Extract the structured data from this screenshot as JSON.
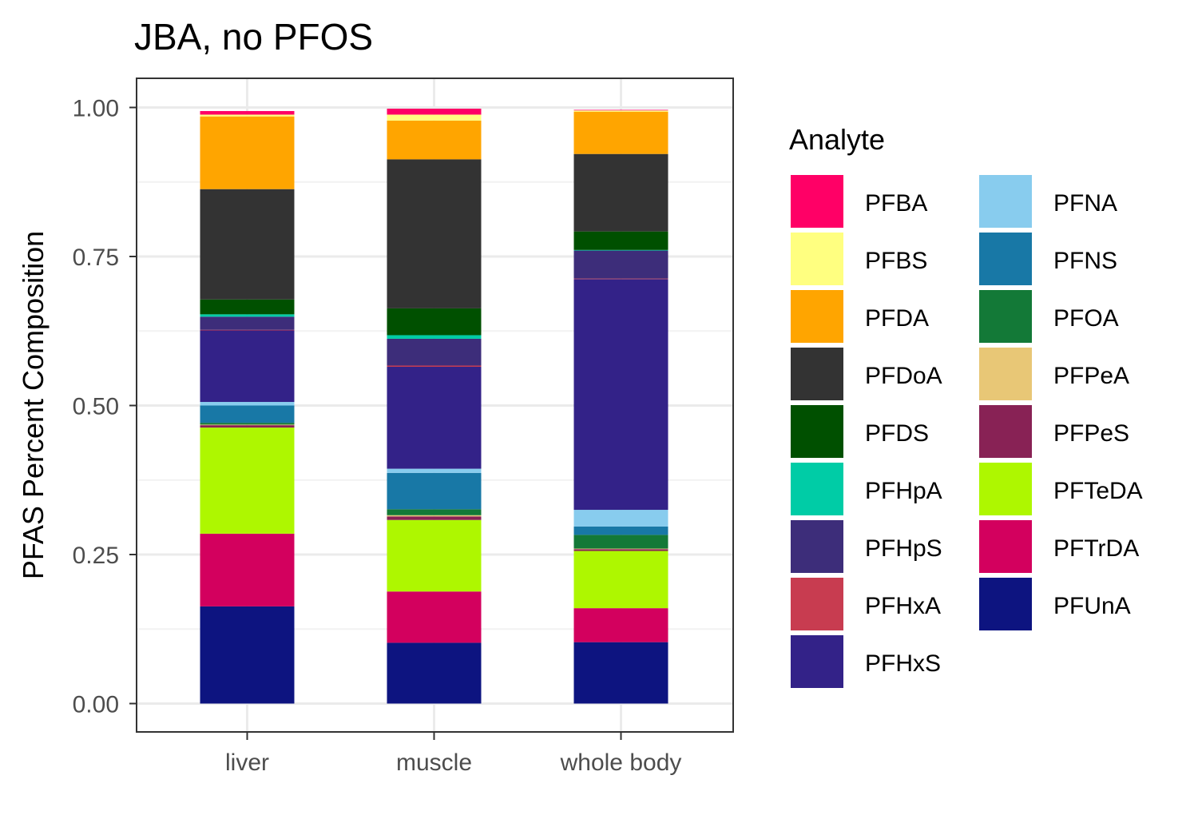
{
  "chart_data": {
    "type": "bar",
    "stacked": true,
    "title": "JBA, no PFOS",
    "xlabel": "",
    "ylabel": "PFAS Percent Composition",
    "categories": [
      "liver",
      "muscle",
      "whole body"
    ],
    "ylim": [
      0,
      1
    ],
    "yticks": [
      "0.00",
      "0.25",
      "0.50",
      "0.75",
      "1.00"
    ],
    "ytick_values": [
      0,
      0.25,
      0.5,
      0.75,
      1
    ],
    "grid": true,
    "legend_title": "Analyte",
    "legend_position": "right",
    "series": [
      {
        "name": "PFBA",
        "color": "#FF0066",
        "values": [
          0.006,
          0.01,
          0.001
        ]
      },
      {
        "name": "PFBS",
        "color": "#FFFF80",
        "values": [
          0.003,
          0.01,
          0.002
        ]
      },
      {
        "name": "PFDA",
        "color": "#FFA500",
        "values": [
          0.122,
          0.065,
          0.071
        ]
      },
      {
        "name": "PFDoA",
        "color": "#333333",
        "values": [
          0.185,
          0.25,
          0.13
        ]
      },
      {
        "name": "PFDS",
        "color": "#005000",
        "values": [
          0.025,
          0.045,
          0.031
        ]
      },
      {
        "name": "PFHpA",
        "color": "#00CCA6",
        "values": [
          0.004,
          0.006,
          0.001
        ]
      },
      {
        "name": "PFHpS",
        "color": "#3D2D7A",
        "values": [
          0.022,
          0.045,
          0.047
        ]
      },
      {
        "name": "PFHxA",
        "color": "#C83C50",
        "values": [
          0.001,
          0.002,
          0.001
        ]
      },
      {
        "name": "PFHxS",
        "color": "#332288",
        "values": [
          0.12,
          0.171,
          0.387
        ]
      },
      {
        "name": "PFNA",
        "color": "#88CCEE",
        "values": [
          0.006,
          0.007,
          0.028
        ]
      },
      {
        "name": "PFNS",
        "color": "#1878A6",
        "values": [
          0.029,
          0.061,
          0.014
        ]
      },
      {
        "name": "PFOA",
        "color": "#137937",
        "values": [
          0.003,
          0.01,
          0.023
        ]
      },
      {
        "name": "PFPeA",
        "color": "#E8C776",
        "values": [
          0.001,
          0.002,
          0.001
        ]
      },
      {
        "name": "PFPeS",
        "color": "#882255",
        "values": [
          0.004,
          0.006,
          0.003
        ]
      },
      {
        "name": "PFTeDA",
        "color": "#AEF700",
        "values": [
          0.178,
          0.12,
          0.096
        ]
      },
      {
        "name": "PFTrDA",
        "color": "#D3005E",
        "values": [
          0.122,
          0.086,
          0.057
        ]
      },
      {
        "name": "PFUnA",
        "color": "#0D1480",
        "values": [
          0.163,
          0.102,
          0.103
        ]
      }
    ]
  }
}
